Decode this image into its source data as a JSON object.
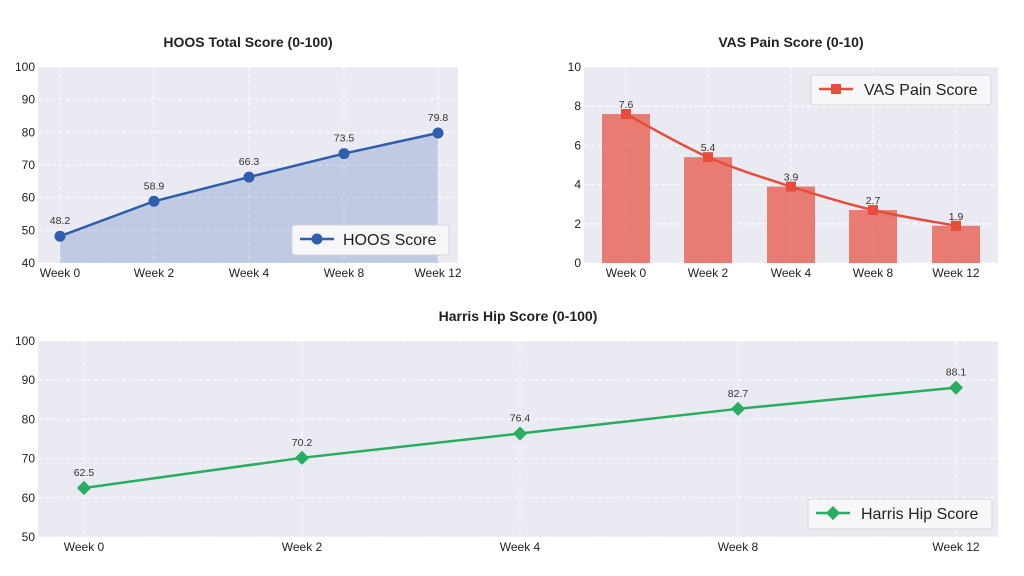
{
  "chart_data": [
    {
      "type": "area",
      "title": "HOOS Total Score (0-100)",
      "categories": [
        "Week 0",
        "Week 2",
        "Week 4",
        "Week 8",
        "Week 12"
      ],
      "series": [
        {
          "name": "HOOS Score",
          "values": [
            48.2,
            58.9,
            66.3,
            73.5,
            79.8
          ],
          "color": "#2f5ead",
          "marker": "circle"
        }
      ],
      "ylim": [
        40,
        100
      ],
      "yticks": [
        "40",
        "50",
        "60",
        "70",
        "80",
        "90",
        "100"
      ],
      "data_labels": [
        "48.2",
        "58.9",
        "66.3",
        "73.5",
        "79.8"
      ],
      "legend_position": "lower-right",
      "grid": true
    },
    {
      "type": "bar",
      "title": "VAS Pain Score (0-10)",
      "categories": [
        "Week 0",
        "Week 2",
        "Week 4",
        "Week 8",
        "Week 12"
      ],
      "series": [
        {
          "name": "VAS Pain Score",
          "values": [
            7.6,
            5.4,
            3.9,
            2.7,
            1.9
          ],
          "color": "#e74c3c",
          "marker": "square"
        }
      ],
      "ylim": [
        0,
        10
      ],
      "yticks": [
        "0",
        "2",
        "4",
        "6",
        "8",
        "10"
      ],
      "data_labels": [
        "7.6",
        "5.4",
        "3.9",
        "2.7",
        "1.9"
      ],
      "legend_position": "upper-right",
      "grid": true
    },
    {
      "type": "line",
      "title": "Harris Hip Score (0-100)",
      "categories": [
        "Week 0",
        "Week 2",
        "Week 4",
        "Week 8",
        "Week 12"
      ],
      "series": [
        {
          "name": "Harris Hip Score",
          "values": [
            62.5,
            70.2,
            76.4,
            82.7,
            88.1
          ],
          "color": "#27ae60",
          "marker": "diamond"
        }
      ],
      "ylim": [
        50,
        100
      ],
      "yticks": [
        "50",
        "60",
        "70",
        "80",
        "90",
        "100"
      ],
      "data_labels": [
        "62.5",
        "70.2",
        "76.4",
        "82.7",
        "88.1"
      ],
      "legend_position": "lower-right",
      "grid": true
    }
  ]
}
